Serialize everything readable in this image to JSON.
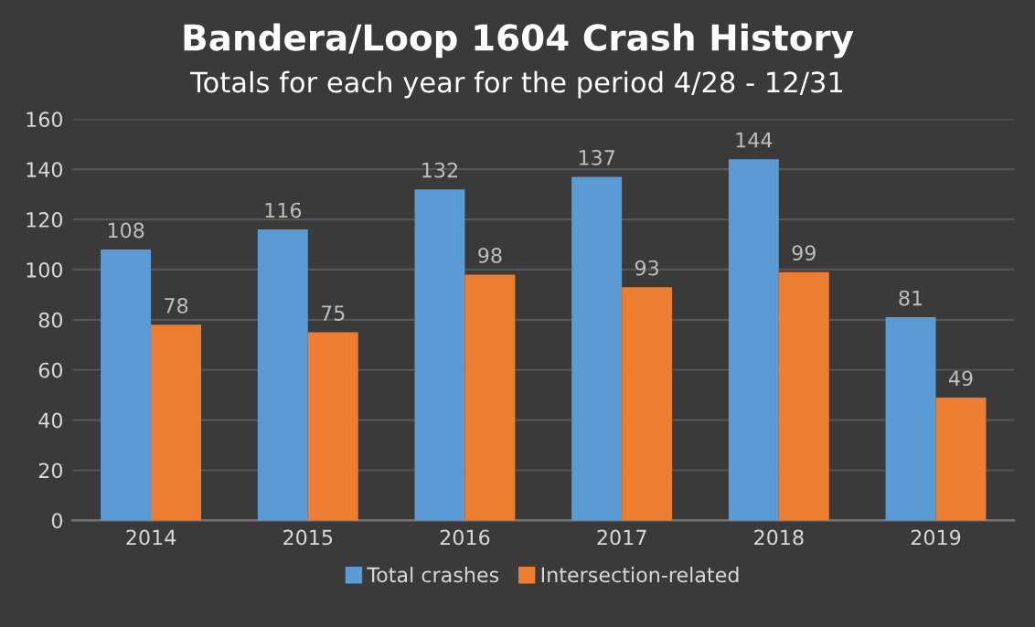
{
  "chart_data": {
    "type": "bar",
    "title": "Bandera/Loop 1604 Crash History",
    "subtitle": "Totals for each year for the period 4/28 - 12/31",
    "categories": [
      "2014",
      "2015",
      "2016",
      "2017",
      "2018",
      "2019"
    ],
    "series": [
      {
        "name": "Total crashes",
        "color": "#5b9bd5",
        "values": [
          108,
          116,
          132,
          137,
          144,
          81
        ]
      },
      {
        "name": "Intersection-related",
        "color": "#ed7d31",
        "values": [
          78,
          75,
          98,
          93,
          99,
          49
        ]
      }
    ],
    "ylim": [
      0,
      160
    ],
    "yticks": [
      0,
      20,
      40,
      60,
      80,
      100,
      120,
      140,
      160
    ],
    "grid": "y",
    "legend": "bottom",
    "data_labels": true
  }
}
